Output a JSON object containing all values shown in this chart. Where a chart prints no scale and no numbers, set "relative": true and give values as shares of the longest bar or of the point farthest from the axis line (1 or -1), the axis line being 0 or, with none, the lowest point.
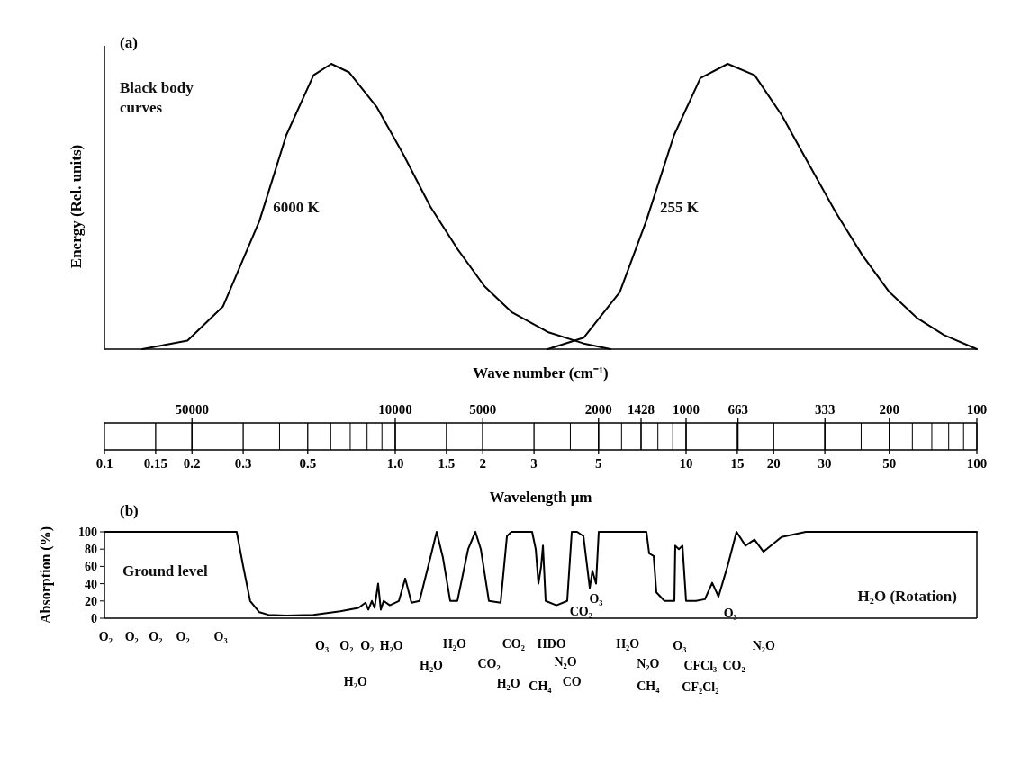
{
  "chart_data": [
    {
      "type": "line",
      "title": "(a)",
      "xlabel": "Wave number (cm⁻¹)",
      "ylabel": "Energy (Rel. units)",
      "relative": true,
      "log": "x",
      "xlim": [
        100000,
        100
      ],
      "xticks": [
        50000,
        10000,
        5000,
        2000,
        1428,
        1000,
        663,
        333,
        200,
        100
      ],
      "annotations": [
        "Black body curves"
      ],
      "series": [
        {
          "name": "6000 K",
          "color": "#000000",
          "x": [
            74100,
            51800,
            39100,
            29300,
            23700,
            19100,
            16600,
            14400,
            11600,
            9350,
            7580,
            6100,
            4930,
            3980,
            2990,
            2250,
            1820
          ],
          "values": [
            0,
            0.03,
            0.15,
            0.45,
            0.75,
            0.96,
            1,
            0.97,
            0.85,
            0.68,
            0.5,
            0.35,
            0.22,
            0.13,
            0.06,
            0.02,
            0
          ]
        },
        {
          "name": "255 K",
          "color": "#000000",
          "x": [
            2990,
            2250,
            1690,
            1370,
            1100,
            893,
            719,
            581,
            469,
            379,
            306,
            248,
            200,
            161,
            130,
            100
          ],
          "values": [
            0,
            0.04,
            0.2,
            0.45,
            0.75,
            0.95,
            1,
            0.96,
            0.82,
            0.65,
            0.48,
            0.33,
            0.2,
            0.11,
            0.05,
            0
          ]
        }
      ]
    },
    {
      "type": "line",
      "title": "(b)",
      "xlabel": "Wavelength μm",
      "ylabel": "Absorption (%)",
      "log": "x",
      "xlim": [
        0.1,
        100
      ],
      "ylim": [
        0,
        100
      ],
      "yticks": [
        0,
        20,
        40,
        60,
        80,
        100
      ],
      "xticks": [
        0.1,
        0.15,
        0.2,
        0.3,
        0.5,
        {
          "value": 1,
          "label": "1.0"
        },
        1.5,
        2,
        3,
        5,
        10,
        15,
        20,
        30,
        50,
        100
      ],
      "annotations": [
        "Ground level",
        "H₂O (Rotation)",
        "O₂",
        "O₂",
        "O₂",
        "O₂",
        "O₃",
        "O₃",
        "O₂",
        "O₂",
        "H₂O",
        "H₂O",
        "H₂O",
        "H₂O",
        "CO₂",
        "CO₂",
        "H₂O",
        "CH₄",
        "HDO",
        "N₂O",
        "CO",
        "CO₂",
        "O₃",
        "H₂O",
        "N₂O",
        "CH₄",
        "O₃",
        "CFCl₃",
        "CF₂Cl₂",
        "O₃",
        "CO₂",
        "N₂O"
      ],
      "series": [
        {
          "color": "#000000",
          "x": [
            0.1,
            0.285,
            0.3,
            0.317,
            0.341,
            0.366,
            0.422,
            0.523,
            0.647,
            0.747,
            0.79,
            0.808,
            0.831,
            0.849,
            0.873,
            0.892,
            0.912,
            0.958,
            1.029,
            1.082,
            1.137,
            1.212,
            1.32,
            1.388,
            1.459,
            1.545,
            1.635,
            1.781,
            1.886,
            1.969,
            2.099,
            2.303,
            2.421,
            2.509,
            2.955,
            3.041,
            3.107,
            3.174,
            3.22,
            3.289,
            3.583,
            3.902,
            4.045,
            4.221,
            4.437,
            4.665,
            4.764,
            4.902,
            5.008,
            5.227,
            7.307,
            7.465,
            7.738,
            7.905,
            8.429,
            9.116,
            9.18,
            9.446,
            9.719,
            10,
            10.82,
            11.61,
            12.3,
            12.93,
            13.88,
            14.91,
            16.01,
            17.19,
            18.46,
            21.29,
            25.82,
            100
          ],
          "values": [
            100,
            100,
            60,
            20,
            7,
            4,
            3,
            4,
            8,
            12,
            18,
            10,
            20,
            12,
            40,
            10,
            20,
            15,
            20,
            46,
            18,
            20,
            70,
            100,
            70,
            20,
            20,
            80,
            100,
            80,
            20,
            18,
            95,
            100,
            100,
            80,
            40,
            60,
            84,
            20,
            15,
            20,
            100,
            100,
            95,
            35,
            55,
            40,
            100,
            100,
            100,
            75,
            72,
            30,
            20,
            20,
            84,
            80,
            84,
            20,
            20,
            22,
            41,
            25,
            60,
            100,
            84,
            91,
            77,
            94,
            100,
            100
          ]
        }
      ]
    }
  ]
}
